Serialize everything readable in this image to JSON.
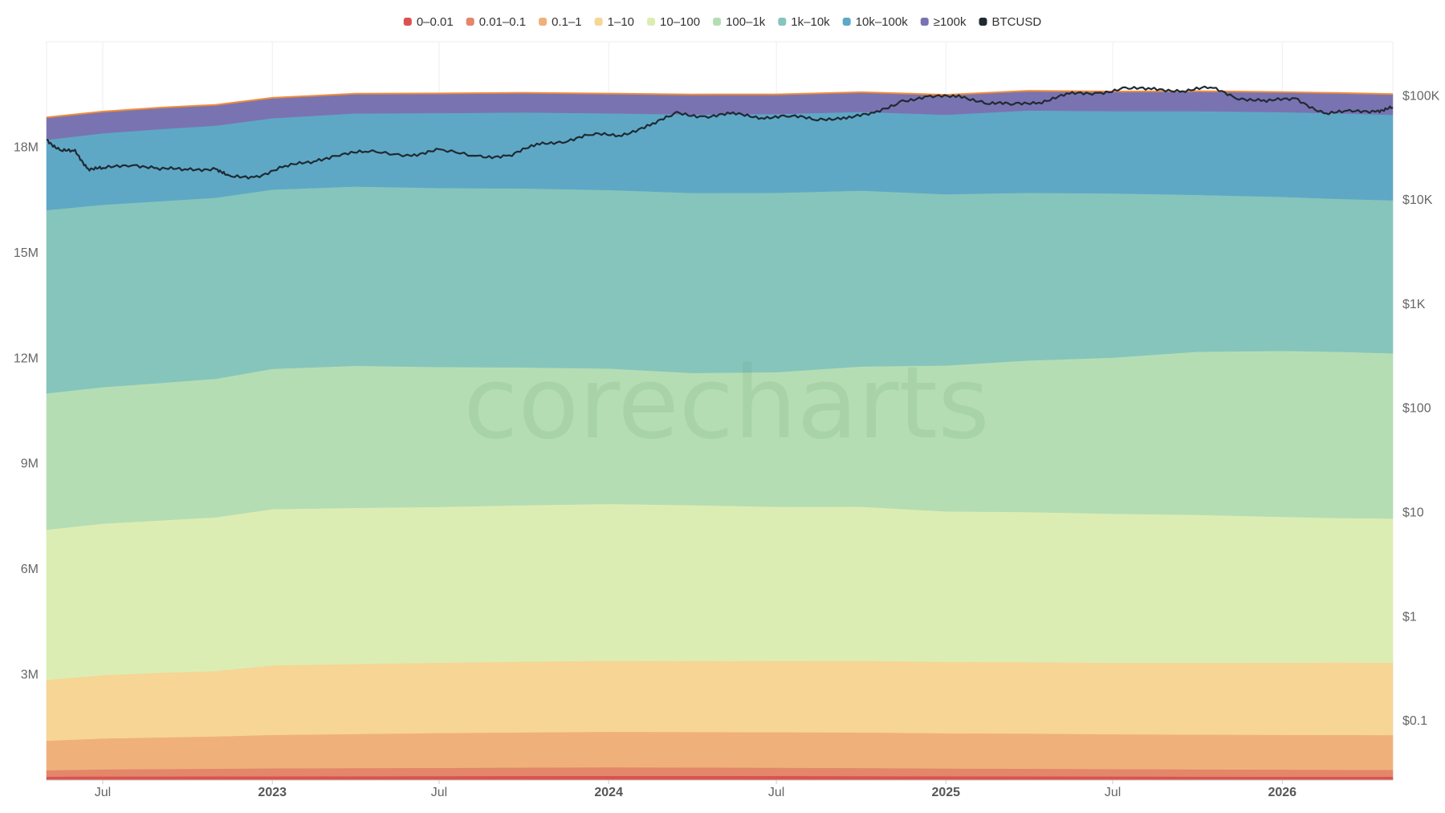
{
  "watermark": "corecharts",
  "colors": {
    "band_0_0_01": "#d9534f",
    "band_0_01_0_1": "#e3866a",
    "band_0_1_1": "#f0b07a",
    "band_1_10": "#f6d595",
    "band_10_100": "#dcedb3",
    "band_100_1k": "#b5ddb4",
    "band_1k_10k": "#86c5bc",
    "band_10k_100k": "#5ea8c6",
    "band_100k_plus": "#7a73b2",
    "btc_line": "#1f2a33",
    "grid": "#eeeeee",
    "top_edge": "#f08c3a"
  },
  "chart_data": {
    "type": "area",
    "stacked": true,
    "title": "",
    "xlabel": "",
    "ylabel": "",
    "y_left_ticks": [
      "3M",
      "6M",
      "9M",
      "12M",
      "15M",
      "18M"
    ],
    "y_left_ticks_values": [
      3000000,
      6000000,
      9000000,
      12000000,
      15000000,
      18000000
    ],
    "y_left_range": [
      0,
      21000000
    ],
    "y_right_scale": "log",
    "y_right_ticks": [
      "$0.1",
      "$1",
      "$10",
      "$100",
      "$1K",
      "$10K",
      "$100K"
    ],
    "y_right_ticks_values": [
      0.1,
      1,
      10,
      100,
      1000,
      10000,
      100000
    ],
    "y_right_range": [
      0.027,
      330000
    ],
    "x_ticks": [
      {
        "label": "Jul",
        "date": "2022-07-01",
        "bold": false
      },
      {
        "label": "2023",
        "date": "2023-01-01",
        "bold": true
      },
      {
        "label": "Jul",
        "date": "2023-07-01",
        "bold": false
      },
      {
        "label": "2024",
        "date": "2024-01-01",
        "bold": true
      },
      {
        "label": "Jul",
        "date": "2024-07-01",
        "bold": false
      },
      {
        "label": "2025",
        "date": "2025-01-01",
        "bold": true
      },
      {
        "label": "Jul",
        "date": "2025-07-01",
        "bold": false
      },
      {
        "label": "2026",
        "date": "2026-01-01",
        "bold": true
      }
    ],
    "x_range": [
      "2022-05-01",
      "2026-05-01"
    ],
    "legend_position": "top-center",
    "x_dates": [
      "2022-05-01",
      "2022-07-01",
      "2022-09-01",
      "2022-11-01",
      "2023-01-01",
      "2023-04-01",
      "2023-07-01",
      "2023-10-01",
      "2024-01-01",
      "2024-04-01",
      "2024-07-01",
      "2024-10-01",
      "2025-01-01",
      "2025-04-01",
      "2025-07-01",
      "2025-10-01",
      "2026-01-01",
      "2026-03-01",
      "2026-05-01"
    ],
    "series": [
      {
        "name": "0–0.01",
        "color_key": "band_0_0_01",
        "values": [
          100000,
          105000,
          105000,
          110000,
          110000,
          112000,
          115000,
          118000,
          120000,
          120000,
          118000,
          115000,
          112000,
          110000,
          105000,
          100000,
          98000,
          96000,
          95000
        ]
      },
      {
        "name": "0.01–0.1",
        "color_key": "band_0_01_0_1",
        "values": [
          180000,
          200000,
          210000,
          215000,
          225000,
          230000,
          235000,
          240000,
          245000,
          240000,
          235000,
          230000,
          220000,
          215000,
          210000,
          205000,
          200000,
          198000,
          195000
        ]
      },
      {
        "name": "0.1–1",
        "color_key": "band_0_1_1",
        "values": [
          840000,
          880000,
          900000,
          920000,
          950000,
          970000,
          990000,
          1000000,
          1010000,
          1010000,
          1010000,
          1010000,
          1000000,
          1000000,
          990000,
          990000,
          990000,
          990000,
          990000
        ]
      },
      {
        "name": "1–10",
        "color_key": "band_1_10",
        "values": [
          1730000,
          1800000,
          1840000,
          1860000,
          1980000,
          1990000,
          2000000,
          2010000,
          2020000,
          2020000,
          2030000,
          2040000,
          2030000,
          2030000,
          2030000,
          2040000,
          2050000,
          2060000,
          2060000
        ]
      },
      {
        "name": "10–100",
        "color_key": "band_10_100",
        "values": [
          4270000,
          4310000,
          4330000,
          4370000,
          4440000,
          4440000,
          4430000,
          4450000,
          4460000,
          4430000,
          4380000,
          4380000,
          4280000,
          4270000,
          4240000,
          4210000,
          4150000,
          4110000,
          4100000
        ]
      },
      {
        "name": "100–1k",
        "color_key": "band_100_1k",
        "values": [
          3880000,
          3880000,
          3910000,
          3940000,
          3990000,
          4040000,
          3980000,
          3920000,
          3850000,
          3760000,
          3830000,
          3990000,
          4150000,
          4310000,
          4440000,
          4640000,
          4720000,
          4730000,
          4700000
        ]
      },
      {
        "name": "1k–10k",
        "color_key": "band_1k_10k",
        "values": [
          5210000,
          5190000,
          5170000,
          5150000,
          5100000,
          5100000,
          5090000,
          5090000,
          5080000,
          5120000,
          5100000,
          5000000,
          4870000,
          4770000,
          4670000,
          4460000,
          4380000,
          4350000,
          4350000
        ]
      },
      {
        "name": "10k–100k",
        "color_key": "band_10k_100k",
        "values": [
          2000000,
          2030000,
          2050000,
          2050000,
          2030000,
          2080000,
          2130000,
          2160000,
          2180000,
          2230000,
          2240000,
          2240000,
          2260000,
          2340000,
          2340000,
          2380000,
          2410000,
          2430000,
          2430000
        ]
      },
      {
        "name": "≥100k",
        "color_key": "band_100k_plus",
        "values": [
          640000,
          620000,
          610000,
          590000,
          580000,
          560000,
          560000,
          560000,
          560000,
          570000,
          560000,
          560000,
          570000,
          560000,
          560000,
          570000,
          570000,
          580000,
          590000
        ]
      }
    ],
    "btc_series": {
      "name": "BTCUSD",
      "color_key": "btc_line",
      "dates": [
        "2022-05-01",
        "2022-05-15",
        "2022-06-01",
        "2022-06-15",
        "2022-07-01",
        "2022-08-01",
        "2022-09-01",
        "2022-10-01",
        "2022-11-01",
        "2022-11-15",
        "2022-12-15",
        "2023-01-15",
        "2023-02-15",
        "2023-03-15",
        "2023-04-15",
        "2023-06-01",
        "2023-07-01",
        "2023-08-15",
        "2023-09-15",
        "2023-10-15",
        "2023-11-15",
        "2023-12-15",
        "2024-01-15",
        "2024-02-15",
        "2024-03-15",
        "2024-04-15",
        "2024-05-15",
        "2024-06-15",
        "2024-07-15",
        "2024-08-15",
        "2024-09-15",
        "2024-10-15",
        "2024-11-15",
        "2024-12-15",
        "2025-01-15",
        "2025-02-15",
        "2025-03-15",
        "2025-04-15",
        "2025-05-15",
        "2025-06-15",
        "2025-07-15",
        "2025-08-15",
        "2025-09-15",
        "2025-10-15",
        "2025-11-15",
        "2025-12-15",
        "2026-01-15",
        "2026-02-15",
        "2026-03-15",
        "2026-04-15",
        "2026-05-01"
      ],
      "values": [
        38000,
        30000,
        29000,
        20000,
        20000,
        22000,
        20000,
        19500,
        20000,
        16500,
        16800,
        21000,
        23500,
        27500,
        29000,
        27000,
        30000,
        26000,
        26500,
        34000,
        37000,
        42500,
        42000,
        52000,
        68000,
        63000,
        67000,
        62000,
        64000,
        59000,
        62000,
        67000,
        90000,
        97000,
        100000,
        85000,
        83000,
        88000,
        104000,
        106000,
        118000,
        115000,
        112000,
        120000,
        95000,
        89000,
        94000,
        68000,
        70000,
        72000,
        77000
      ]
    }
  }
}
